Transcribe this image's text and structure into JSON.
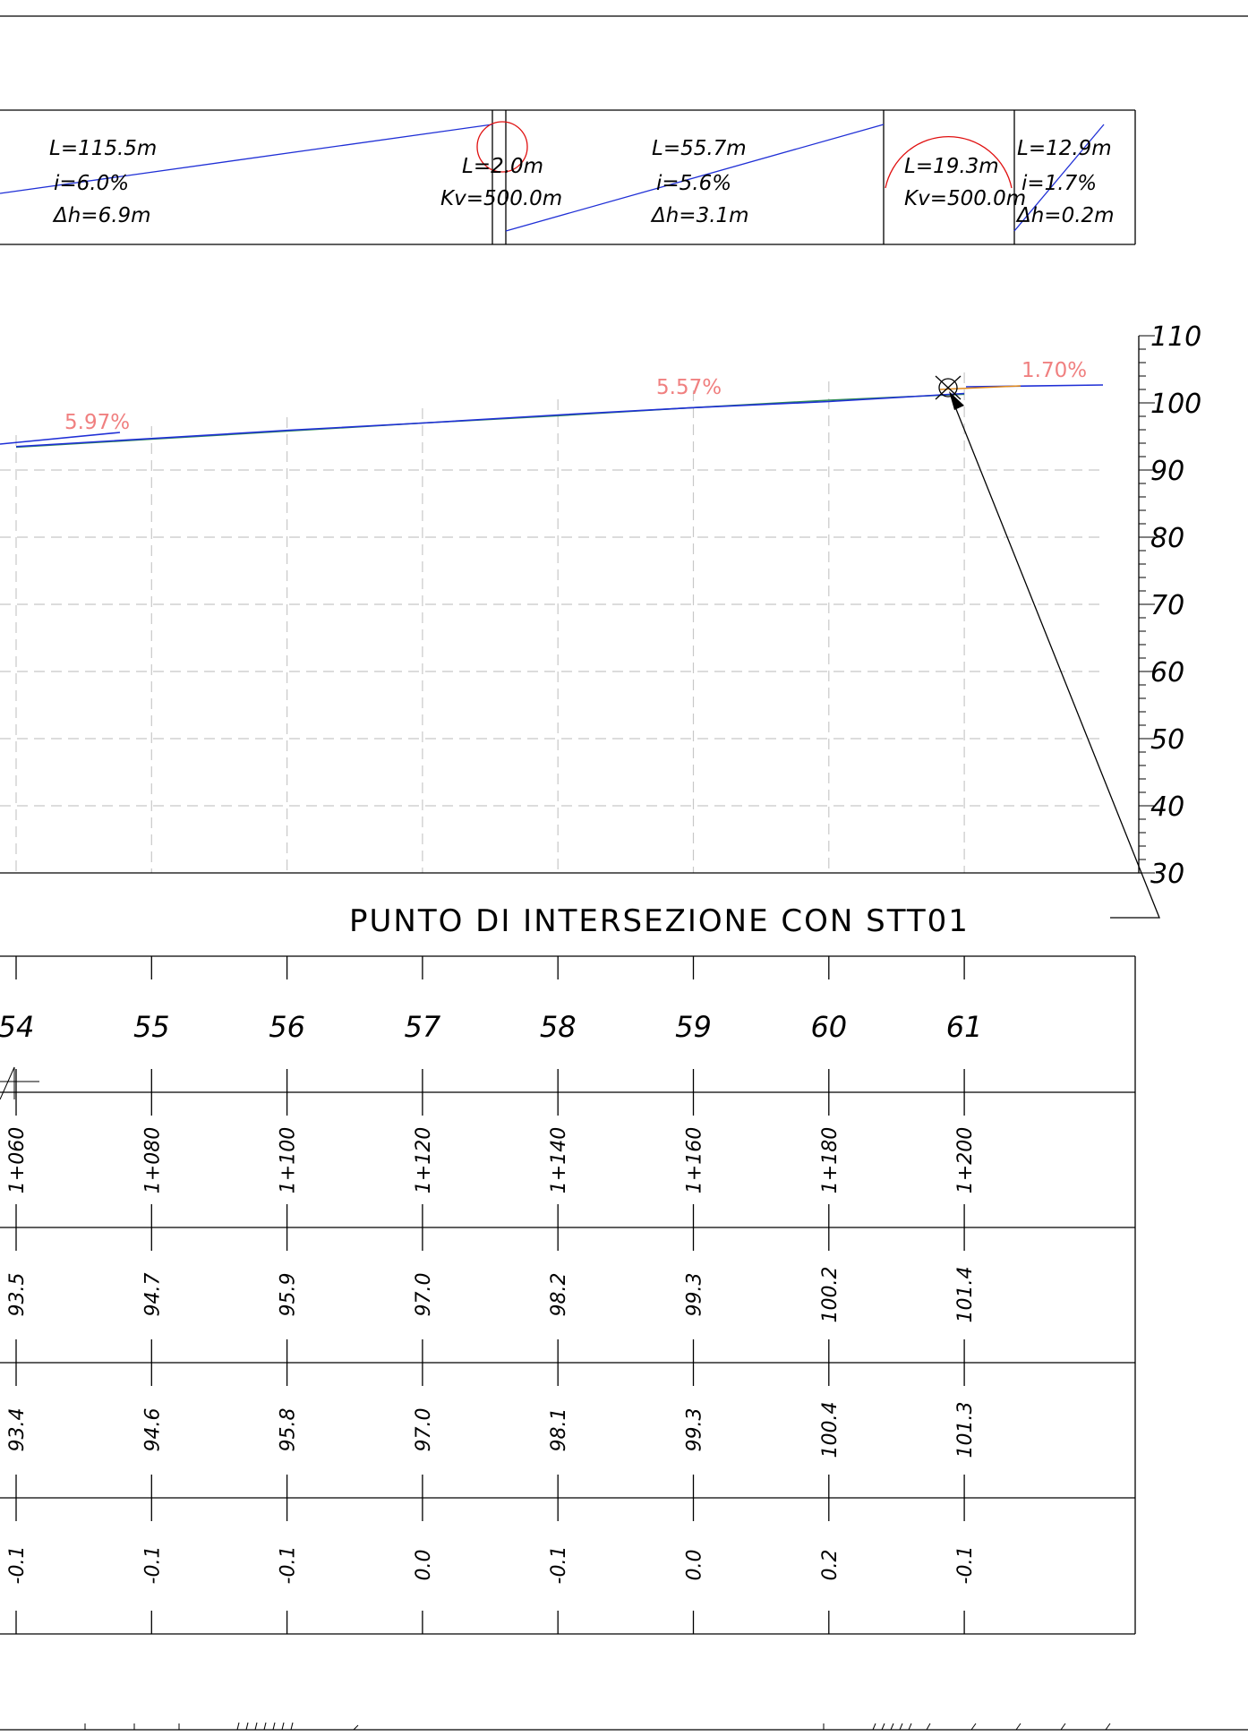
{
  "colors": {
    "line": "#000000",
    "profile_design": "#1f2fd6",
    "profile_ground": "#2e8b57",
    "curve": "#e01010",
    "grade_label": "#f08080",
    "grid": "#c8c8c8"
  },
  "segments": [
    {
      "type": "grade",
      "labels": [
        "L=115.5m",
        "i=6.0%",
        "Δh=6.9m"
      ]
    },
    {
      "type": "curve",
      "labels": [
        "L=2.0m",
        "Kv=500.0m"
      ]
    },
    {
      "type": "grade",
      "labels": [
        "L=55.7m",
        "i=5.6%",
        "Δh=3.1m"
      ]
    },
    {
      "type": "curve",
      "labels": [
        "L=19.3m",
        "Kv=500.0m"
      ]
    },
    {
      "type": "grade",
      "labels": [
        "L=12.9m",
        "i=1.7%",
        "Δh=0.2m"
      ]
    }
  ],
  "profile": {
    "grade_labels": [
      "5.97%",
      "5.57%",
      "1.70%"
    ],
    "elevation_ticks": [
      "110",
      "100",
      "90",
      "80",
      "70",
      "60",
      "50",
      "40",
      "30"
    ],
    "elevation_range": [
      30,
      110
    ],
    "intersection_label": "PUNTO DI INTERSEZIONE CON STT01"
  },
  "table": {
    "sections": [
      "54",
      "55",
      "56",
      "57",
      "58",
      "59",
      "60",
      "61"
    ],
    "chainages": [
      "1+060",
      "1+080",
      "1+100",
      "1+120",
      "1+140",
      "1+160",
      "1+180",
      "1+200"
    ],
    "design_elevations": [
      "93.5",
      "94.7",
      "95.9",
      "97.0",
      "98.2",
      "99.3",
      "100.2",
      "101.4"
    ],
    "ground_elevations": [
      "93.4",
      "94.6",
      "95.8",
      "97.0",
      "98.1",
      "99.3",
      "100.4",
      "101.3"
    ],
    "differences": [
      "-0.1",
      "-0.1",
      "-0.1",
      "0.0",
      "-0.1",
      "0.0",
      "0.2",
      "-0.1"
    ]
  },
  "chart_data": {
    "type": "line",
    "x": [
      "1+060",
      "1+080",
      "1+100",
      "1+120",
      "1+140",
      "1+160",
      "1+180",
      "1+200"
    ],
    "series": [
      {
        "values": [
          93.5,
          94.7,
          95.9,
          97.0,
          98.2,
          99.3,
          100.2,
          101.4
        ]
      },
      {
        "values": [
          93.4,
          94.6,
          95.8,
          97.0,
          98.1,
          99.3,
          100.4,
          101.3
        ]
      }
    ],
    "ylim": [
      30,
      110
    ],
    "grid": true
  }
}
